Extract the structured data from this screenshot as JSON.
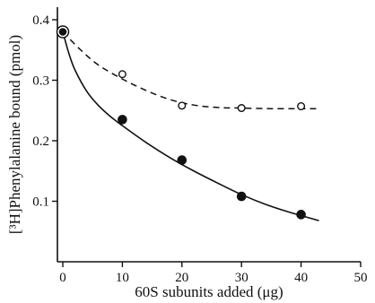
{
  "chart_data": {
    "type": "line",
    "xlabel": "60S subunits added (μg)",
    "ylabel": "[³H]Phenylalanine bound (pmol)",
    "xlim": [
      0,
      50
    ],
    "ylim": [
      0,
      0.4
    ],
    "x_ticks": [
      0,
      10,
      20,
      30,
      40,
      50
    ],
    "y_ticks": [
      0.1,
      0.2,
      0.3,
      0.4
    ],
    "x_tick_labels": [
      "0",
      "10",
      "20",
      "30",
      "40",
      "50"
    ],
    "y_tick_labels": [
      "0.1",
      "0.2",
      "0.3",
      "0.4"
    ],
    "grid": false,
    "shared_start_point": {
      "x": 0,
      "y": 0.38
    },
    "series": [
      {
        "marker": "open-circle",
        "line_style": "dashed",
        "points": [
          [
            10,
            0.31
          ],
          [
            20,
            0.258
          ],
          [
            30,
            0.254
          ],
          [
            40,
            0.257
          ]
        ],
        "fit_curve": [
          [
            0,
            0.38
          ],
          [
            3,
            0.35
          ],
          [
            6,
            0.325
          ],
          [
            10,
            0.302
          ],
          [
            14,
            0.283
          ],
          [
            18,
            0.268
          ],
          [
            22,
            0.259
          ],
          [
            26,
            0.255
          ],
          [
            30,
            0.254
          ],
          [
            35,
            0.253
          ],
          [
            40,
            0.253
          ],
          [
            43,
            0.253
          ]
        ]
      },
      {
        "marker": "filled-circle",
        "line_style": "solid",
        "points": [
          [
            10,
            0.235
          ],
          [
            20,
            0.168
          ],
          [
            30,
            0.108
          ],
          [
            40,
            0.078
          ]
        ],
        "fit_curve": [
          [
            0,
            0.38
          ],
          [
            1,
            0.345
          ],
          [
            2,
            0.318
          ],
          [
            4,
            0.282
          ],
          [
            6,
            0.258
          ],
          [
            8,
            0.24
          ],
          [
            10,
            0.225
          ],
          [
            14,
            0.197
          ],
          [
            18,
            0.172
          ],
          [
            22,
            0.15
          ],
          [
            26,
            0.13
          ],
          [
            30,
            0.111
          ],
          [
            34,
            0.095
          ],
          [
            38,
            0.082
          ],
          [
            43,
            0.068
          ]
        ]
      }
    ]
  }
}
